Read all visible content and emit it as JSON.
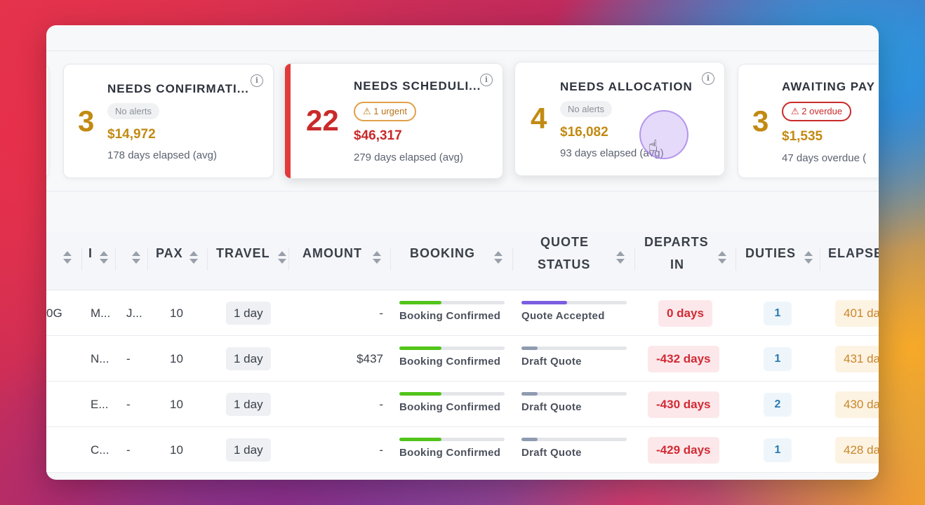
{
  "cards": [
    {
      "count": "3",
      "title": "NEEDS CONFIRMATI...",
      "badge": "No alerts",
      "amount": "$14,972",
      "sub": "178 days elapsed (avg)"
    },
    {
      "count": "22",
      "title": "NEEDS SCHEDULI...",
      "badge": "⚠ 1 urgent",
      "amount": "$46,317",
      "sub": "279 days elapsed (avg)"
    },
    {
      "count": "4",
      "title": "NEEDS ALLOCATION",
      "badge": "No alerts",
      "amount": "$16,082",
      "sub": "93 days elapsed (avg)"
    },
    {
      "count": "3",
      "title": "AWAITING PAY",
      "badge": "⚠ 2 overdue",
      "amount": "$1,535",
      "sub": "47 days overdue ("
    }
  ],
  "info_glyph": "i",
  "columns": {
    "c1": "I",
    "pax": "PAX",
    "travel": "TRAVEL",
    "amount": "AMOUNT",
    "booking": "BOOKING",
    "quote_status_1": "QUOTE",
    "quote_status_2": "STATUS",
    "departs_1": "DEPARTS",
    "departs_2": "IN",
    "duties": "DUTIES",
    "elapsed": "ELAPSE"
  },
  "rows": [
    {
      "ref": "0G",
      "c1": "M...",
      "c2": "J...",
      "pax": "10",
      "travel": "1 day",
      "amount": "-",
      "booking": "Booking Confirmed",
      "booking_pct": 40,
      "quote": "Quote Accepted",
      "quote_pct": 43,
      "quote_color": "#7c5ce0",
      "departs": "0 days",
      "duties": "1",
      "elapsed": "401 da"
    },
    {
      "ref": "",
      "c1": "N...",
      "c2": "-",
      "pax": "10",
      "travel": "1 day",
      "amount": "$437",
      "booking": "Booking Confirmed",
      "booking_pct": 40,
      "quote": "Draft Quote",
      "quote_pct": 15,
      "quote_color": "#8f9bb0",
      "departs": "-432 days",
      "duties": "1",
      "elapsed": "431 da"
    },
    {
      "ref": "",
      "c1": "E...",
      "c2": "-",
      "pax": "10",
      "travel": "1 day",
      "amount": "-",
      "booking": "Booking Confirmed",
      "booking_pct": 40,
      "quote": "Draft Quote",
      "quote_pct": 15,
      "quote_color": "#8f9bb0",
      "departs": "-430 days",
      "duties": "2",
      "elapsed": "430 da"
    },
    {
      "ref": "",
      "c1": "C...",
      "c2": "-",
      "pax": "10",
      "travel": "1 day",
      "amount": "-",
      "booking": "Booking Confirmed",
      "booking_pct": 40,
      "quote": "Draft Quote",
      "quote_pct": 15,
      "quote_color": "#8f9bb0",
      "departs": "-429 days",
      "duties": "1",
      "elapsed": "428 da"
    }
  ],
  "colors": {
    "booking_bar": "#52c41a"
  }
}
